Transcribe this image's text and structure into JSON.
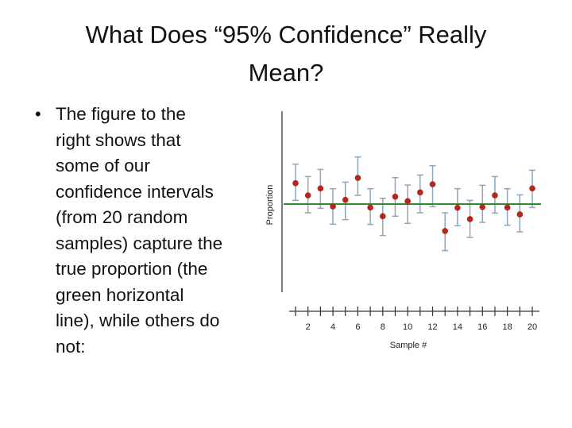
{
  "slide": {
    "title_lines": [
      "What Does “95% Confidence” Really",
      "Mean?"
    ],
    "bullet_lines": [
      "The figure to the",
      "right shows that",
      "some of our",
      "confidence intervals",
      "(from 20 random",
      "samples) capture the",
      "true proportion (the",
      "green horizontal",
      "line), while others do",
      "not:"
    ]
  },
  "chart_data": {
    "type": "scatter",
    "title": "",
    "xlabel": "Sample #",
    "ylabel": "Proportion",
    "x": [
      1,
      2,
      3,
      4,
      5,
      6,
      7,
      8,
      9,
      10,
      11,
      12,
      13,
      14,
      15,
      16,
      17,
      18,
      19,
      20
    ],
    "x_tick_labels": [
      "2",
      "4",
      "6",
      "8",
      "10",
      "12",
      "14",
      "16",
      "18",
      "20"
    ],
    "x_tick_label_values": [
      2,
      4,
      6,
      8,
      10,
      12,
      14,
      16,
      18,
      20
    ],
    "y_relative_to_true_proportion": true,
    "true_proportion": 0,
    "estimates": [
      7.9,
      3.3,
      5.9,
      -0.9,
      1.6,
      9.9,
      -1.3,
      -4.6,
      2.8,
      1.1,
      4.4,
      7.5,
      -10.2,
      -1.4,
      -5.7,
      -1.1,
      3.3,
      -1.3,
      -3.9,
      5.9
    ],
    "upper": [
      15.1,
      10.4,
      13.1,
      5.8,
      8.3,
      17.8,
      5.8,
      2.2,
      10.0,
      7.2,
      11.0,
      14.5,
      -3.3,
      5.8,
      1.4,
      7.1,
      10.4,
      5.8,
      3.5,
      12.8
    ],
    "lower": [
      1.4,
      -3.3,
      -1.6,
      -7.6,
      -5.9,
      3.3,
      -7.7,
      -11.9,
      -4.6,
      -7.3,
      -3.3,
      -1.0,
      -17.6,
      -8.2,
      -12.6,
      -6.9,
      -3.4,
      -8.0,
      -10.5,
      -1.3
    ],
    "grid": false,
    "colors": {
      "point": "#b5271e",
      "error_bar": "#8fa5b8",
      "true_line": "#2e8b2e",
      "axis": "#555555"
    }
  }
}
